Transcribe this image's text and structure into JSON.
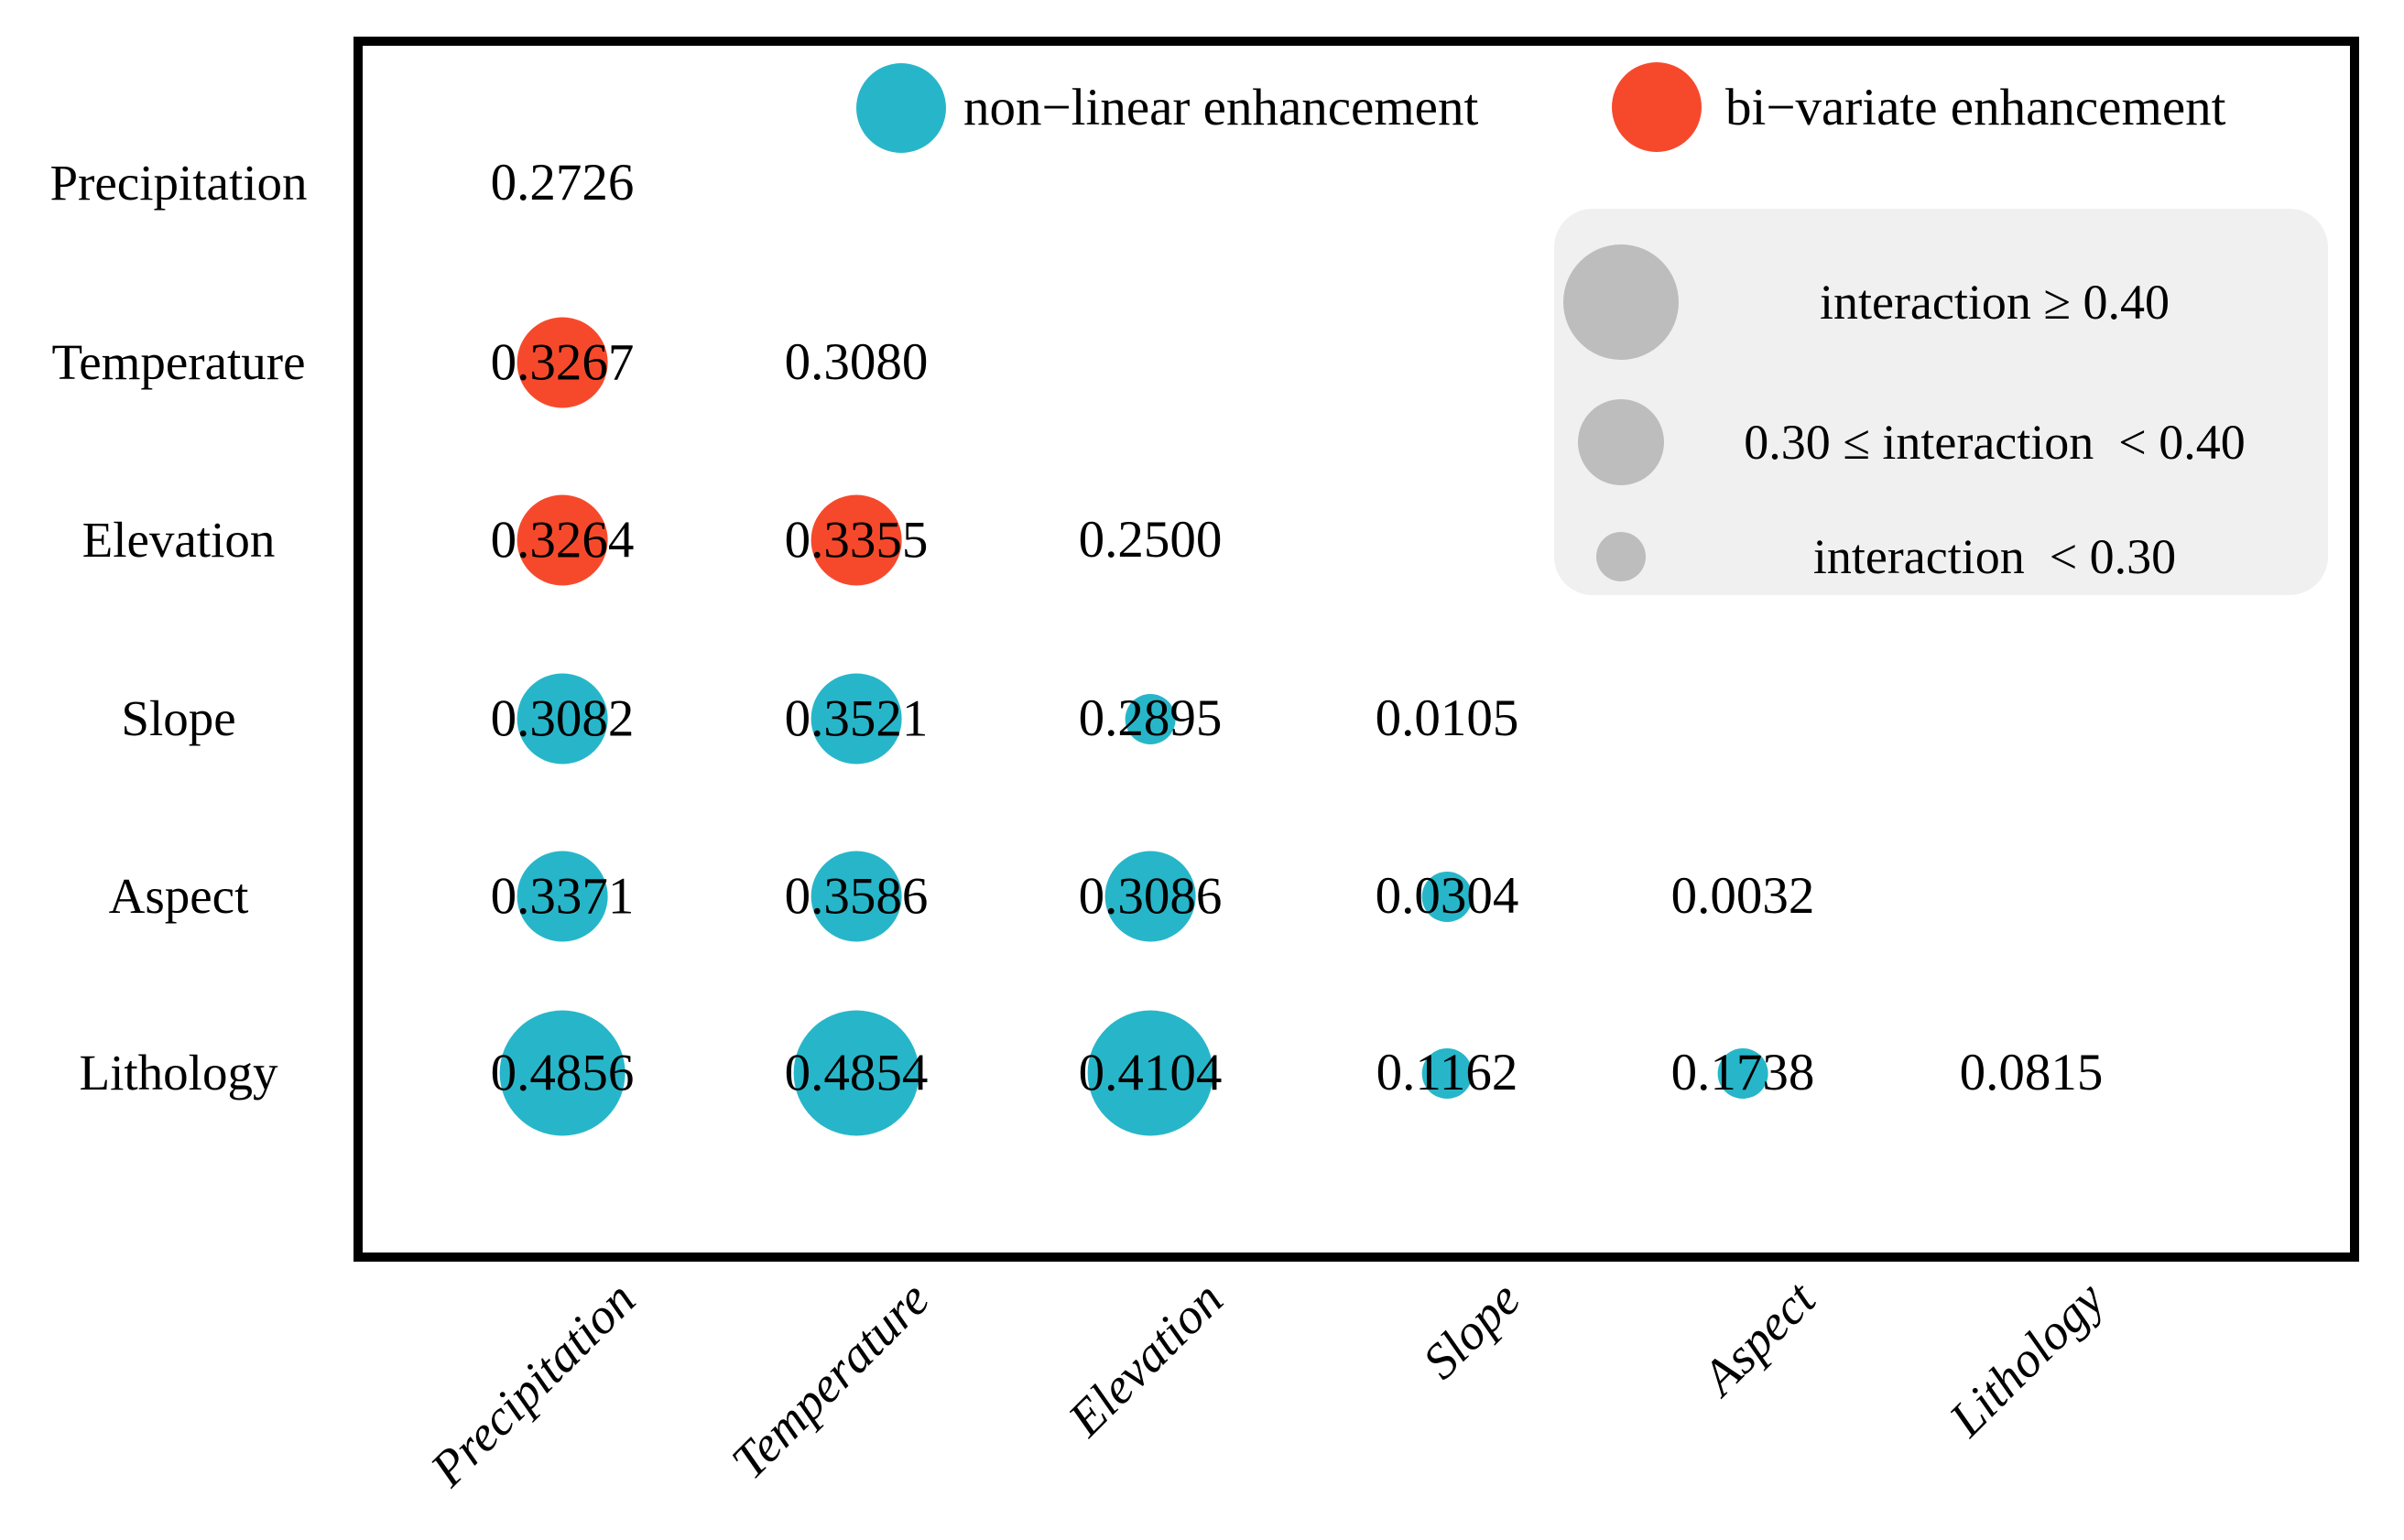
{
  "colors": {
    "non_linear": "#27b6c9",
    "bi_variate": "#f6492c",
    "size_legend_circle": "#bdbdbd",
    "size_legend_background": "#f0f0f0",
    "text": "#000000"
  },
  "legend": {
    "non_linear_label": "non−linear enhancement",
    "bi_variate_label": "bi−variate enhancement"
  },
  "size_legend": {
    "items": [
      {
        "size": "large",
        "label": "interaction ≥ 0.40"
      },
      {
        "size": "medium",
        "label": "0.30 ≤ interaction  < 0.40"
      },
      {
        "size": "small",
        "label": "interaction  < 0.30"
      }
    ]
  },
  "chart_data": {
    "type": "bubble-matrix",
    "title": "",
    "factors": [
      "Precipitation",
      "Temperature",
      "Elevation",
      "Slope",
      "Aspect",
      "Lithology"
    ],
    "size_rules": {
      "large_min": 0.4,
      "medium_min": 0.3
    },
    "cells": [
      {
        "row": 0,
        "col": 0,
        "label": "0.2726",
        "value": 0.2726,
        "enhancement": "none"
      },
      {
        "row": 1,
        "col": 0,
        "label": "0.3267",
        "value": 0.3267,
        "enhancement": "bi-variate"
      },
      {
        "row": 1,
        "col": 1,
        "label": "0.3080",
        "value": 0.308,
        "enhancement": "none"
      },
      {
        "row": 2,
        "col": 0,
        "label": "0.3264",
        "value": 0.3264,
        "enhancement": "bi-variate"
      },
      {
        "row": 2,
        "col": 1,
        "label": "0.3355",
        "value": 0.3355,
        "enhancement": "bi-variate"
      },
      {
        "row": 2,
        "col": 2,
        "label": "0.2500",
        "value": 0.25,
        "enhancement": "none"
      },
      {
        "row": 3,
        "col": 0,
        "label": "0.3082",
        "value": 0.3082,
        "enhancement": "non-linear"
      },
      {
        "row": 3,
        "col": 1,
        "label": "0.3521",
        "value": 0.3521,
        "enhancement": "non-linear"
      },
      {
        "row": 3,
        "col": 2,
        "label": "0.2895",
        "value": 0.2895,
        "enhancement": "non-linear"
      },
      {
        "row": 3,
        "col": 3,
        "label": "0.0105",
        "value": 0.0105,
        "enhancement": "none"
      },
      {
        "row": 4,
        "col": 0,
        "label": "0.3371",
        "value": 0.3371,
        "enhancement": "non-linear"
      },
      {
        "row": 4,
        "col": 1,
        "label": "0.3586",
        "value": 0.3586,
        "enhancement": "non-linear"
      },
      {
        "row": 4,
        "col": 2,
        "label": "0.3086",
        "value": 0.3086,
        "enhancement": "non-linear"
      },
      {
        "row": 4,
        "col": 3,
        "label": "0.0304",
        "value": 0.0304,
        "enhancement": "non-linear"
      },
      {
        "row": 4,
        "col": 4,
        "label": "0.0032",
        "value": 0.0032,
        "enhancement": "none"
      },
      {
        "row": 5,
        "col": 0,
        "label": "0.4856",
        "value": 0.4856,
        "enhancement": "non-linear"
      },
      {
        "row": 5,
        "col": 1,
        "label": "0.4854",
        "value": 0.4854,
        "enhancement": "non-linear"
      },
      {
        "row": 5,
        "col": 2,
        "label": "0.4104",
        "value": 0.4104,
        "enhancement": "non-linear"
      },
      {
        "row": 5,
        "col": 3,
        "label": "0.1162",
        "value": 0.1162,
        "enhancement": "non-linear"
      },
      {
        "row": 5,
        "col": 4,
        "label": "0.1738",
        "value": 0.1738,
        "enhancement": "non-linear"
      },
      {
        "row": 5,
        "col": 5,
        "label": "0.0815",
        "value": 0.0815,
        "enhancement": "none"
      }
    ]
  }
}
